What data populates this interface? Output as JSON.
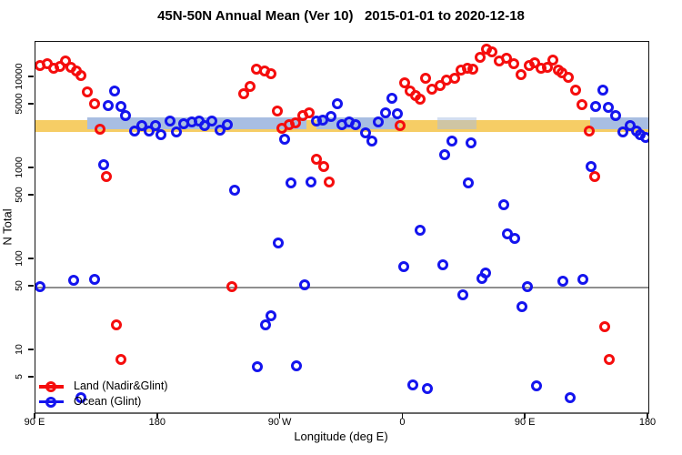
{
  "chart_data": {
    "type": "scatter",
    "title": "45N-50N Annual Mean (Ver 10)   2015-01-01 to 2020-12-18",
    "xlabel": "Longitude (deg E)",
    "ylabel": "N Total",
    "grid": false,
    "x_axis": {
      "min": 90,
      "max": 540,
      "note": "longitude plotted eastward from 90E wrapping through 180, 90W, 0, 90E to 180",
      "ticks": [
        {
          "lon": 90,
          "label": "90 E"
        },
        {
          "lon": 180,
          "label": "180"
        },
        {
          "lon": 270,
          "label": "90 W"
        },
        {
          "lon": 360,
          "label": "0"
        },
        {
          "lon": 450,
          "label": "90 E"
        },
        {
          "lon": 540,
          "label": "180"
        }
      ]
    },
    "y_axis": {
      "scale": "log",
      "min": 2.1,
      "max": 24500,
      "ticks": [
        {
          "value": 10000,
          "label": "10000"
        },
        {
          "value": 5000,
          "label": "5000"
        },
        {
          "value": 1000,
          "label": "1000"
        },
        {
          "value": 500,
          "label": "500"
        },
        {
          "value": 100,
          "label": "100"
        },
        {
          "value": 50,
          "label": "50"
        },
        {
          "value": 10,
          "label": "10"
        },
        {
          "value": 5,
          "label": "5"
        }
      ]
    },
    "reference_line": {
      "value": 50,
      "color": "#8f8f8f"
    },
    "bands": [
      {
        "name": "land-mean-band",
        "color": "#F6CD65",
        "opacity": 1,
        "v_low": 2500,
        "v_high": 3400,
        "segments": [
          [
            90,
            540
          ]
        ]
      },
      {
        "name": "ocean-mean-band",
        "color": "#A8BEE2",
        "opacity": 1,
        "v_low": 2700,
        "v_high": 3650,
        "segments": [
          [
            128,
            289
          ],
          [
            296.5,
            357
          ],
          [
            497,
            540
          ]
        ]
      },
      {
        "name": "ocean-mean-band-faint",
        "color": "#A8BEE2",
        "opacity": 0.5,
        "v_low": 2700,
        "v_high": 3650,
        "segments": [
          [
            385,
            414
          ]
        ]
      }
    ],
    "legend": {
      "position": "bottom-left",
      "entries": [
        {
          "label": "Land (Nadir&Glint)",
          "color": "#F50D0D"
        },
        {
          "label": "Ocean (Glint)",
          "color": "#1414EE"
        }
      ]
    },
    "series": [
      {
        "name": "Land (Nadir&Glint)",
        "color": "#F50D0D",
        "marker": "open-circle",
        "points": [
          [
            93.3,
            13500
          ],
          [
            98.7,
            14100
          ],
          [
            103.4,
            12600
          ],
          [
            108,
            13200
          ],
          [
            112,
            15100
          ],
          [
            116,
            12900
          ],
          [
            120,
            11800
          ],
          [
            123.4,
            10500
          ],
          [
            128.1,
            6900
          ],
          [
            133.4,
            5100
          ],
          [
            137.4,
            2700
          ],
          [
            142.1,
            810
          ],
          [
            149.4,
            19
          ],
          [
            152.8,
            8
          ],
          [
            234.2,
            50
          ],
          [
            242.9,
            6600
          ],
          [
            247.6,
            7900
          ],
          [
            252.2,
            12300
          ],
          [
            258.3,
            11800
          ],
          [
            262.9,
            11000
          ],
          [
            267.6,
            4300
          ],
          [
            270.9,
            2750
          ],
          [
            276.3,
            3020
          ],
          [
            281,
            3160
          ],
          [
            286.3,
            3800
          ],
          [
            291,
            4100
          ],
          [
            296.3,
            1260
          ],
          [
            301.7,
            1050
          ],
          [
            305.7,
            700
          ],
          [
            357.7,
            2950
          ],
          [
            361.1,
            8700
          ],
          [
            365.1,
            7100
          ],
          [
            369.1,
            6300
          ],
          [
            372.4,
            5800
          ],
          [
            376.5,
            9800
          ],
          [
            381.1,
            7400
          ],
          [
            387.1,
            8100
          ],
          [
            391.8,
            9300
          ],
          [
            397.8,
            9800
          ],
          [
            402.5,
            12000
          ],
          [
            407.1,
            12600
          ],
          [
            411.1,
            12300
          ],
          [
            416.5,
            16600
          ],
          [
            421.1,
            20400
          ],
          [
            425.1,
            19100
          ],
          [
            430.5,
            15100
          ],
          [
            435.8,
            16200
          ],
          [
            441.2,
            14100
          ],
          [
            446.5,
            10700
          ],
          [
            452.5,
            13500
          ],
          [
            456.5,
            14500
          ],
          [
            461.2,
            12600
          ],
          [
            465.9,
            12900
          ],
          [
            469.9,
            15500
          ],
          [
            473.9,
            12000
          ],
          [
            476.5,
            11200
          ],
          [
            481.2,
            10000
          ],
          [
            486.6,
            7200
          ],
          [
            491.2,
            5000
          ],
          [
            496.6,
            2600
          ],
          [
            500.7,
            810
          ],
          [
            508,
            18
          ],
          [
            511.3,
            8
          ]
        ]
      },
      {
        "name": "Ocean (Glint)",
        "color": "#1414EE",
        "marker": "open-circle",
        "points": [
          [
            93.3,
            50
          ],
          [
            118,
            59
          ],
          [
            123.4,
            3
          ],
          [
            133.4,
            60
          ],
          [
            140.1,
            1100
          ],
          [
            143.4,
            4900
          ],
          [
            148.1,
            7100
          ],
          [
            152.8,
            4800
          ],
          [
            156.1,
            3800
          ],
          [
            162.8,
            2600
          ],
          [
            168.1,
            2950
          ],
          [
            173.5,
            2570
          ],
          [
            178.1,
            2950
          ],
          [
            182.1,
            2340
          ],
          [
            188.8,
            3310
          ],
          [
            193.5,
            2510
          ],
          [
            198.8,
            3090
          ],
          [
            204.8,
            3240
          ],
          [
            210.1,
            3310
          ],
          [
            214.1,
            2950
          ],
          [
            219.4,
            3310
          ],
          [
            225.4,
            2630
          ],
          [
            230.8,
            3020
          ],
          [
            236.2,
            580
          ],
          [
            252.9,
            6.6
          ],
          [
            258.9,
            19
          ],
          [
            262.9,
            24
          ],
          [
            268.3,
            150
          ],
          [
            272.9,
            2100
          ],
          [
            277.6,
            690
          ],
          [
            281.6,
            6.8
          ],
          [
            287.6,
            53
          ],
          [
            292.3,
            700
          ],
          [
            296.3,
            3310
          ],
          [
            301,
            3400
          ],
          [
            307,
            3700
          ],
          [
            311.6,
            5100
          ],
          [
            314.7,
            3000
          ],
          [
            320.1,
            3240
          ],
          [
            325,
            3000
          ],
          [
            332.3,
            2450
          ],
          [
            337,
            2000
          ],
          [
            341.7,
            3240
          ],
          [
            347,
            4100
          ],
          [
            351.7,
            5900
          ],
          [
            355.7,
            4000
          ],
          [
            360.4,
            83
          ],
          [
            367.1,
            4.2
          ],
          [
            372.4,
            210
          ],
          [
            377.8,
            3.8
          ],
          [
            389.1,
            87
          ],
          [
            390.5,
            1400
          ],
          [
            395.8,
            2000
          ],
          [
            403.8,
            41
          ],
          [
            407.8,
            690
          ],
          [
            409.8,
            1900
          ],
          [
            417.9,
            62
          ],
          [
            420.5,
            71
          ],
          [
            433.9,
            400
          ],
          [
            436.5,
            190
          ],
          [
            441.9,
            170
          ],
          [
            447.2,
            30
          ],
          [
            451.2,
            50
          ],
          [
            457.9,
            4.1
          ],
          [
            477.3,
            58
          ],
          [
            482.6,
            3
          ],
          [
            492,
            60
          ],
          [
            498,
            1050
          ],
          [
            501.3,
            4800
          ],
          [
            506.6,
            7200
          ],
          [
            510.7,
            4700
          ],
          [
            516,
            3800
          ],
          [
            521.3,
            2500
          ],
          [
            526.7,
            2950
          ],
          [
            531.3,
            2600
          ],
          [
            534,
            2340
          ],
          [
            538,
            2200
          ]
        ]
      }
    ]
  }
}
